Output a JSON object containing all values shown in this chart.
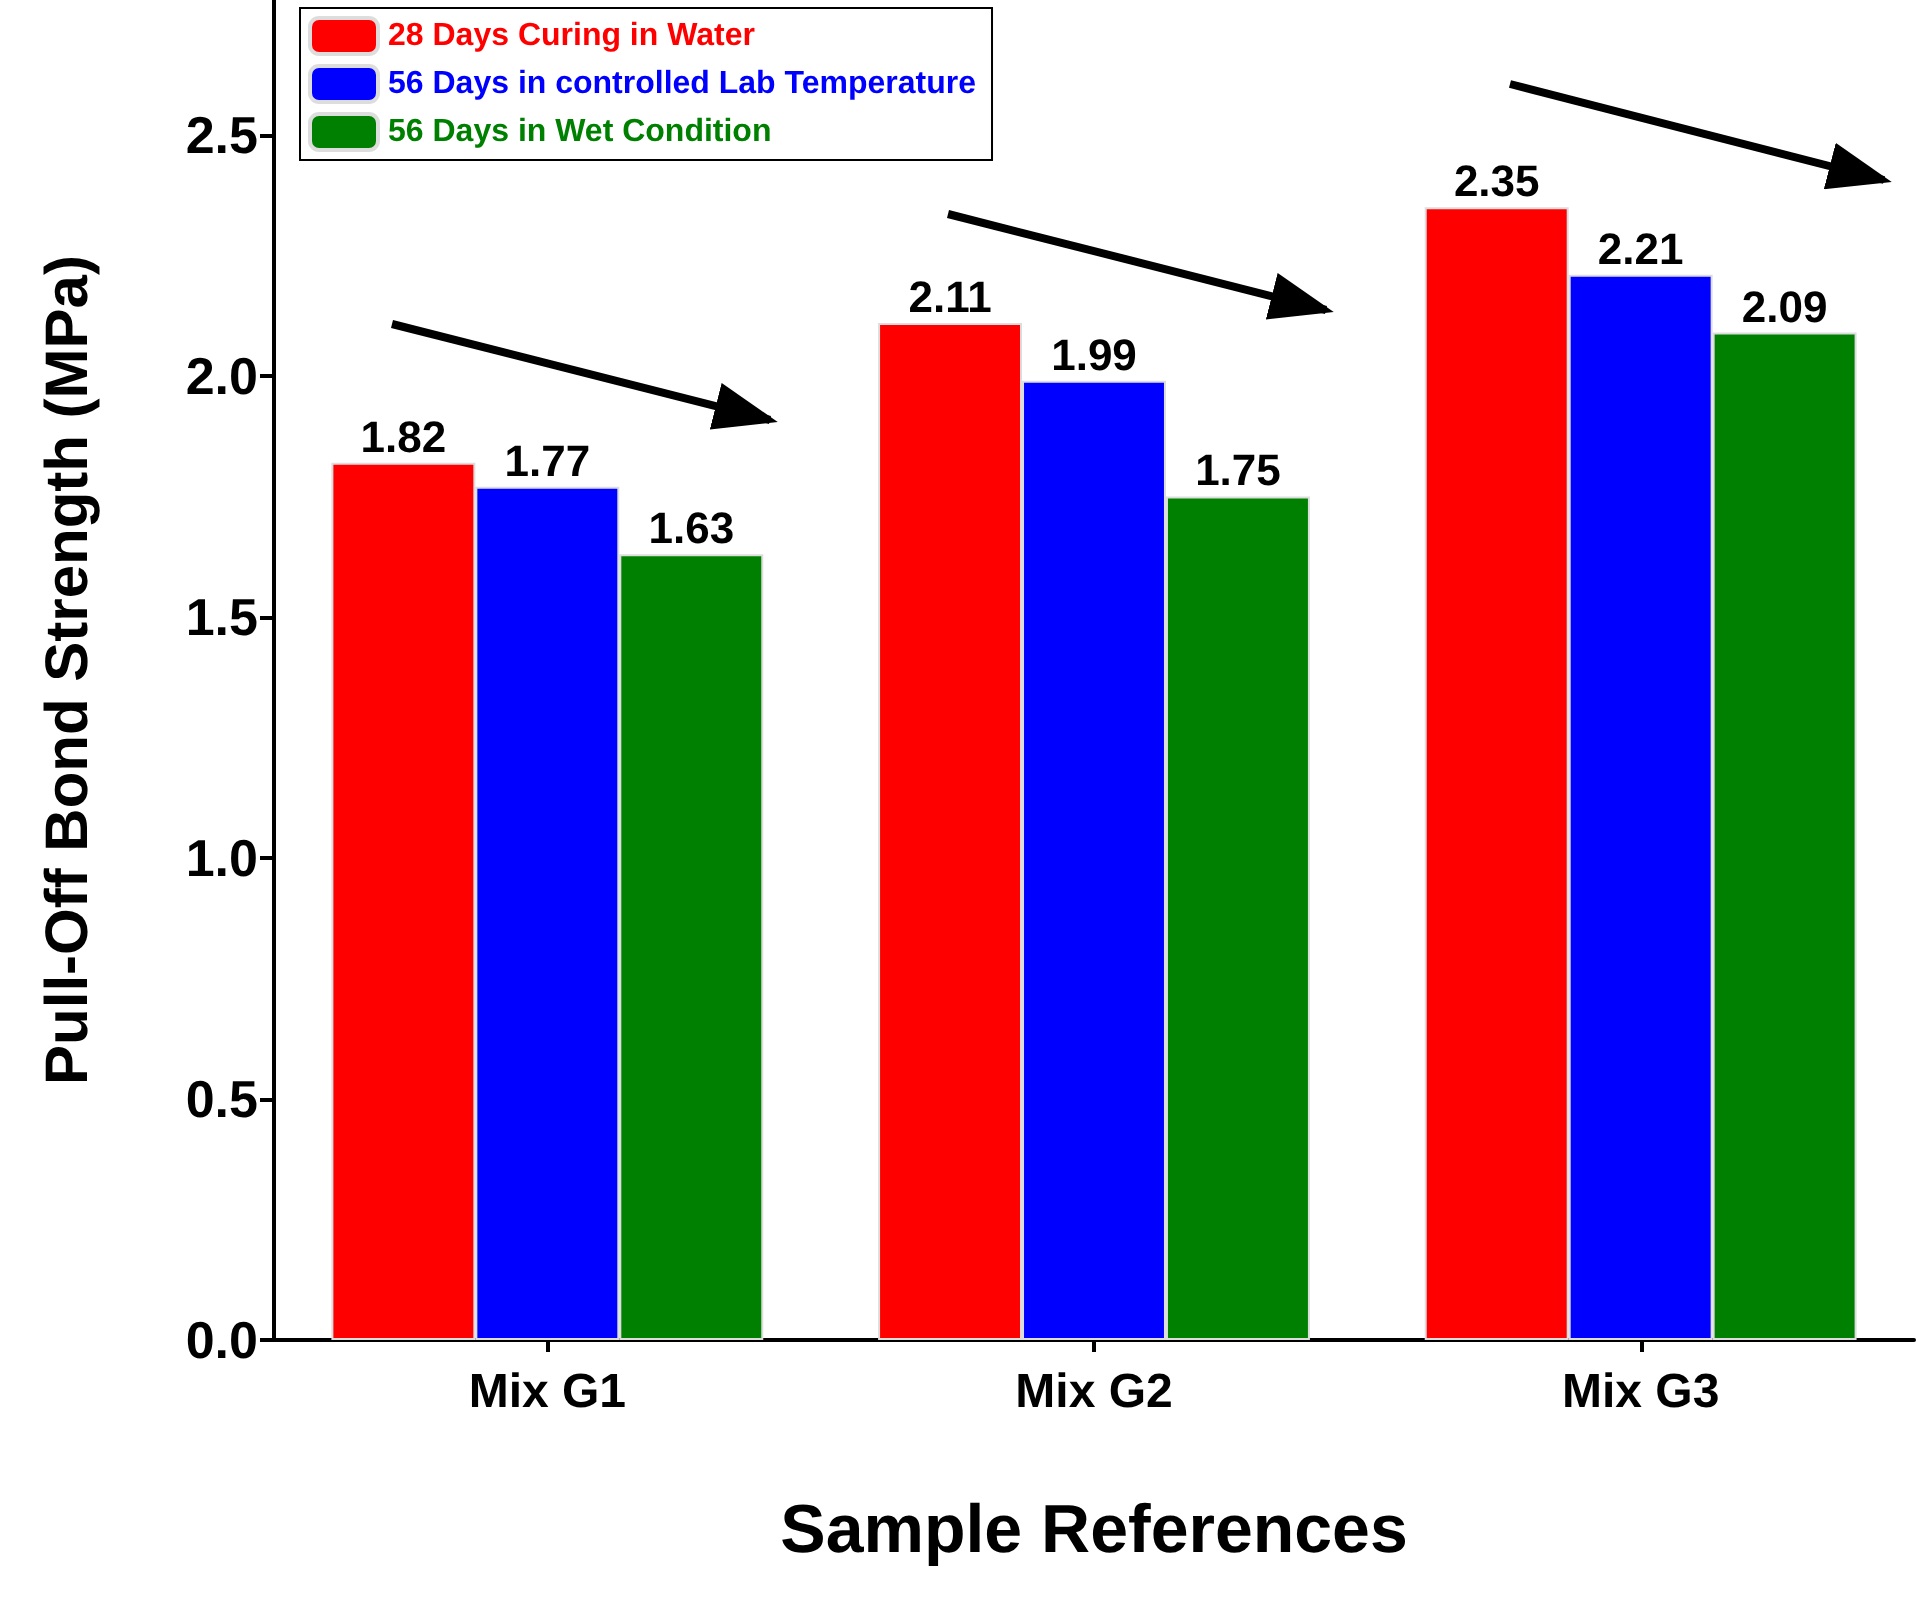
{
  "chart_data": {
    "type": "bar",
    "xlabel": "Sample References",
    "ylabel": "Pull-Off Bond Strength (MPa)",
    "categories": [
      "Mix G1",
      "Mix G2",
      "Mix G3"
    ],
    "series": [
      {
        "name": "28 Days Curing in Water",
        "color": "#ff0000",
        "values": [
          1.82,
          2.11,
          2.35
        ]
      },
      {
        "name": "56 Days in controlled Lab Temperature",
        "color": "#0000ff",
        "values": [
          1.77,
          1.99,
          2.21
        ]
      },
      {
        "name": "56 Days in Wet Condition",
        "color": "#008000",
        "values": [
          1.63,
          1.75,
          2.09
        ]
      }
    ],
    "ylim": [
      0,
      2.78
    ],
    "yticks": [
      {
        "value": 0,
        "label": "0.0"
      },
      0.5,
      {
        "value": 1,
        "label": "1.0"
      },
      1.5,
      {
        "value": 2,
        "label": "2.0"
      },
      2.5
    ],
    "data_labels": true,
    "legend": "top left"
  }
}
